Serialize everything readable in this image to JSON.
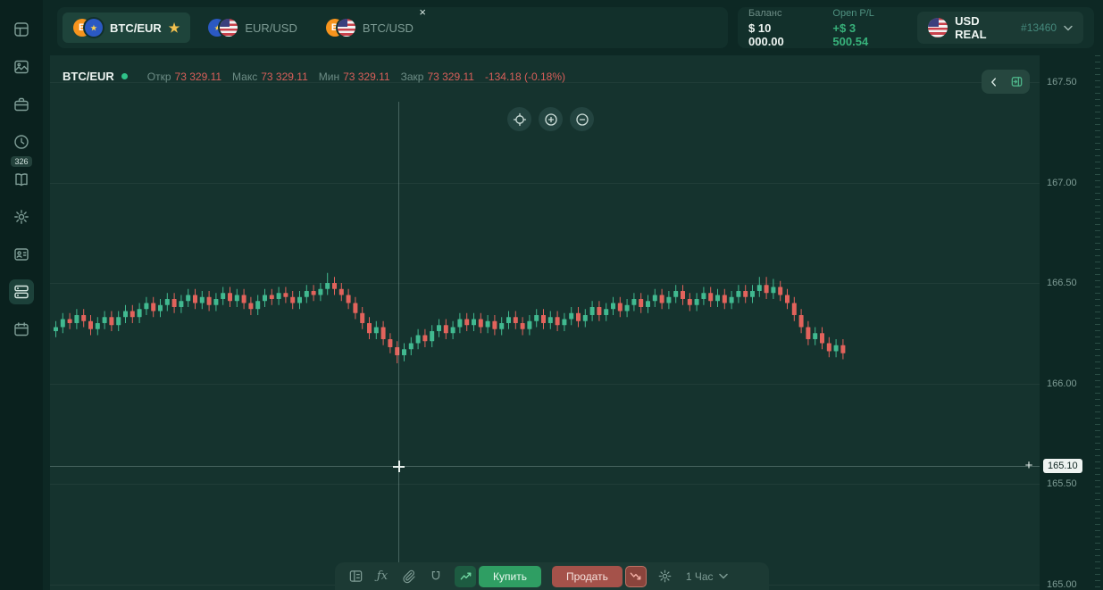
{
  "sidebar": {
    "icons": [
      "dashboard-icon",
      "gallery-icon",
      "briefcase-icon",
      "history-clock-icon",
      "journal-icon",
      "gear-icon",
      "profile-card-icon",
      "server-stack-icon",
      "calendar-icon"
    ],
    "items": [
      {
        "name": "dashboard"
      },
      {
        "name": "charts"
      },
      {
        "name": "portfolio"
      },
      {
        "name": "history",
        "badge": "326"
      },
      {
        "name": "journal"
      },
      {
        "name": "settings"
      },
      {
        "name": "profile"
      },
      {
        "name": "terminal",
        "active": true
      },
      {
        "name": "calendar"
      }
    ]
  },
  "tabs": [
    {
      "label": "BTC/EUR",
      "active": true,
      "starred": true,
      "icons": [
        "btc-coin-icon",
        "eur-flag-icon"
      ]
    },
    {
      "label": "EUR/USD",
      "active": false,
      "icons": [
        "eur-flag-icon",
        "us-flag-icon"
      ]
    },
    {
      "label": "BTC/USD",
      "active": false,
      "closable": true,
      "icons": [
        "btc-coin-icon",
        "us-flag-icon"
      ]
    }
  ],
  "account": {
    "balance_label": "Баланс",
    "balance_value": "$ 10 000.00",
    "open_pl_label": "Open P/L",
    "open_pl_value": "+$ 3 500.54",
    "name": "USD REAL",
    "number": "#13460"
  },
  "chart": {
    "symbol": "BTC/EUR",
    "ohlc": {
      "open_label": "Откр",
      "open": "73 329.11",
      "high_label": "Макс",
      "high": "73 329.11",
      "low_label": "Мин",
      "low": "73 329.11",
      "close_label": "Закр",
      "close": "73 329.11",
      "change": "-134.18 (-0.18%)"
    },
    "axis_labels": [
      "167.50",
      "167.00",
      "166.50",
      "166.00",
      "165.50",
      "165.00"
    ],
    "crosshair_price": "165.10",
    "header_controls": [
      "locate-icon",
      "zoom-in-icon",
      "zoom-out-icon"
    ],
    "corner_controls": [
      "chevron-left-icon",
      "panel-expand-icon"
    ]
  },
  "toolbar": {
    "icons": [
      "orders-panel-icon",
      "indicator-fx-icon",
      "attach-icon",
      "magnet-icon",
      "gear-icon"
    ],
    "buy_label": "Купить",
    "sell_label": "Продать",
    "timeframe": "1 Час"
  },
  "colors": {
    "background": "#0d2824",
    "panel": "#12302b",
    "chart_bg": "#15332e",
    "buy_green": "#2f9e63",
    "sell_red": "#a5524a",
    "candle_up": "#41b990",
    "candle_down": "#e2635c",
    "profit_green": "#38b27b",
    "loss_red": "#d95f5a",
    "star_yellow": "#f2c14e"
  },
  "chart_data": {
    "type": "candlestick",
    "symbol": "BTC/EUR",
    "timeframe": "1 Час",
    "ylim": [
      165.0,
      167.5
    ],
    "up_color": "#41b990",
    "down_color": "#e2635c",
    "candles": [
      [
        166.26,
        166.31,
        166.23,
        166.28
      ],
      [
        166.28,
        166.35,
        166.25,
        166.32
      ],
      [
        166.32,
        166.35,
        166.27,
        166.3
      ],
      [
        166.3,
        166.37,
        166.27,
        166.34
      ],
      [
        166.34,
        166.37,
        166.28,
        166.31
      ],
      [
        166.31,
        166.34,
        166.24,
        166.27
      ],
      [
        166.27,
        166.33,
        166.24,
        166.3
      ],
      [
        166.3,
        166.36,
        166.27,
        166.33
      ],
      [
        166.33,
        166.36,
        166.26,
        166.29
      ],
      [
        166.29,
        166.36,
        166.26,
        166.33
      ],
      [
        166.33,
        166.39,
        166.3,
        166.36
      ],
      [
        166.36,
        166.39,
        166.3,
        166.33
      ],
      [
        166.33,
        166.4,
        166.3,
        166.37
      ],
      [
        166.37,
        166.43,
        166.34,
        166.4
      ],
      [
        166.4,
        166.43,
        166.33,
        166.36
      ],
      [
        166.36,
        166.42,
        166.33,
        166.39
      ],
      [
        166.39,
        166.45,
        166.36,
        166.42
      ],
      [
        166.42,
        166.45,
        166.35,
        166.38
      ],
      [
        166.38,
        166.44,
        166.35,
        166.41
      ],
      [
        166.41,
        166.47,
        166.38,
        166.44
      ],
      [
        166.44,
        166.47,
        166.37,
        166.4
      ],
      [
        166.4,
        166.46,
        166.37,
        166.43
      ],
      [
        166.43,
        166.46,
        166.36,
        166.39
      ],
      [
        166.39,
        166.45,
        166.36,
        166.42
      ],
      [
        166.42,
        166.48,
        166.39,
        166.45
      ],
      [
        166.45,
        166.48,
        166.38,
        166.41
      ],
      [
        166.41,
        166.47,
        166.38,
        166.44
      ],
      [
        166.44,
        166.47,
        166.37,
        166.4
      ],
      [
        166.4,
        166.43,
        166.34,
        166.37
      ],
      [
        166.37,
        166.44,
        166.34,
        166.41
      ],
      [
        166.41,
        166.47,
        166.38,
        166.44
      ],
      [
        166.44,
        166.47,
        166.39,
        166.42
      ],
      [
        166.42,
        166.48,
        166.39,
        166.45
      ],
      [
        166.45,
        166.48,
        166.4,
        166.43
      ],
      [
        166.43,
        166.46,
        166.37,
        166.4
      ],
      [
        166.4,
        166.46,
        166.37,
        166.43
      ],
      [
        166.43,
        166.49,
        166.4,
        166.46
      ],
      [
        166.46,
        166.49,
        166.41,
        166.44
      ],
      [
        166.44,
        166.5,
        166.41,
        166.47
      ],
      [
        166.47,
        166.55,
        166.44,
        166.5
      ],
      [
        166.5,
        166.53,
        166.44,
        166.47
      ],
      [
        166.47,
        166.5,
        166.41,
        166.44
      ],
      [
        166.44,
        166.47,
        166.37,
        166.4
      ],
      [
        166.4,
        166.43,
        166.32,
        166.35
      ],
      [
        166.35,
        166.38,
        166.27,
        166.3
      ],
      [
        166.3,
        166.33,
        166.22,
        166.25
      ],
      [
        166.25,
        166.31,
        166.22,
        166.28
      ],
      [
        166.28,
        166.31,
        166.19,
        166.22
      ],
      [
        166.22,
        166.25,
        166.15,
        166.18
      ],
      [
        166.18,
        166.21,
        166.1,
        166.14
      ],
      [
        166.14,
        166.2,
        166.11,
        166.17
      ],
      [
        166.17,
        166.23,
        166.14,
        166.2
      ],
      [
        166.2,
        166.27,
        166.17,
        166.24
      ],
      [
        166.24,
        166.27,
        166.18,
        166.21
      ],
      [
        166.21,
        166.29,
        166.18,
        166.26
      ],
      [
        166.26,
        166.32,
        166.23,
        166.29
      ],
      [
        166.29,
        166.32,
        166.22,
        166.25
      ],
      [
        166.25,
        166.31,
        166.22,
        166.28
      ],
      [
        166.28,
        166.35,
        166.25,
        166.32
      ],
      [
        166.32,
        166.35,
        166.26,
        166.29
      ],
      [
        166.29,
        166.35,
        166.26,
        166.32
      ],
      [
        166.32,
        166.35,
        166.25,
        166.28
      ],
      [
        166.28,
        166.34,
        166.25,
        166.31
      ],
      [
        166.31,
        166.34,
        166.24,
        166.27
      ],
      [
        166.27,
        166.33,
        166.24,
        166.3
      ],
      [
        166.3,
        166.36,
        166.27,
        166.33
      ],
      [
        166.33,
        166.36,
        166.27,
        166.3
      ],
      [
        166.3,
        166.33,
        166.24,
        166.27
      ],
      [
        166.27,
        166.34,
        166.24,
        166.31
      ],
      [
        166.31,
        166.37,
        166.28,
        166.34
      ],
      [
        166.34,
        166.37,
        166.27,
        166.3
      ],
      [
        166.3,
        166.36,
        166.27,
        166.33
      ],
      [
        166.33,
        166.36,
        166.26,
        166.29
      ],
      [
        166.29,
        166.35,
        166.26,
        166.32
      ],
      [
        166.32,
        166.38,
        166.29,
        166.35
      ],
      [
        166.35,
        166.38,
        166.28,
        166.31
      ],
      [
        166.31,
        166.37,
        166.28,
        166.34
      ],
      [
        166.34,
        166.41,
        166.31,
        166.38
      ],
      [
        166.38,
        166.41,
        166.31,
        166.34
      ],
      [
        166.34,
        166.4,
        166.31,
        166.37
      ],
      [
        166.37,
        166.43,
        166.34,
        166.4
      ],
      [
        166.4,
        166.43,
        166.33,
        166.36
      ],
      [
        166.36,
        166.42,
        166.33,
        166.39
      ],
      [
        166.39,
        166.45,
        166.36,
        166.42
      ],
      [
        166.42,
        166.45,
        166.35,
        166.38
      ],
      [
        166.38,
        166.44,
        166.35,
        166.41
      ],
      [
        166.41,
        166.47,
        166.38,
        166.44
      ],
      [
        166.44,
        166.47,
        166.37,
        166.4
      ],
      [
        166.4,
        166.46,
        166.37,
        166.43
      ],
      [
        166.43,
        166.49,
        166.4,
        166.46
      ],
      [
        166.46,
        166.49,
        166.39,
        166.42
      ],
      [
        166.42,
        166.45,
        166.36,
        166.39
      ],
      [
        166.39,
        166.45,
        166.36,
        166.42
      ],
      [
        166.42,
        166.48,
        166.39,
        166.45
      ],
      [
        166.45,
        166.48,
        166.38,
        166.41
      ],
      [
        166.41,
        166.47,
        166.38,
        166.44
      ],
      [
        166.44,
        166.47,
        166.37,
        166.4
      ],
      [
        166.4,
        166.46,
        166.37,
        166.43
      ],
      [
        166.43,
        166.49,
        166.4,
        166.46
      ],
      [
        166.46,
        166.49,
        166.4,
        166.43
      ],
      [
        166.43,
        166.49,
        166.4,
        166.46
      ],
      [
        166.46,
        166.53,
        166.43,
        166.49
      ],
      [
        166.49,
        166.53,
        166.42,
        166.45
      ],
      [
        166.45,
        166.52,
        166.42,
        166.48
      ],
      [
        166.48,
        166.51,
        166.41,
        166.44
      ],
      [
        166.44,
        166.47,
        166.37,
        166.4
      ],
      [
        166.4,
        166.43,
        166.31,
        166.34
      ],
      [
        166.34,
        166.37,
        166.25,
        166.28
      ],
      [
        166.28,
        166.31,
        166.19,
        166.22
      ],
      [
        166.22,
        166.28,
        166.19,
        166.25
      ],
      [
        166.25,
        166.28,
        166.17,
        166.2
      ],
      [
        166.2,
        166.23,
        166.13,
        166.16
      ],
      [
        166.16,
        166.22,
        166.13,
        166.19
      ],
      [
        166.19,
        166.22,
        166.12,
        166.15
      ]
    ]
  }
}
